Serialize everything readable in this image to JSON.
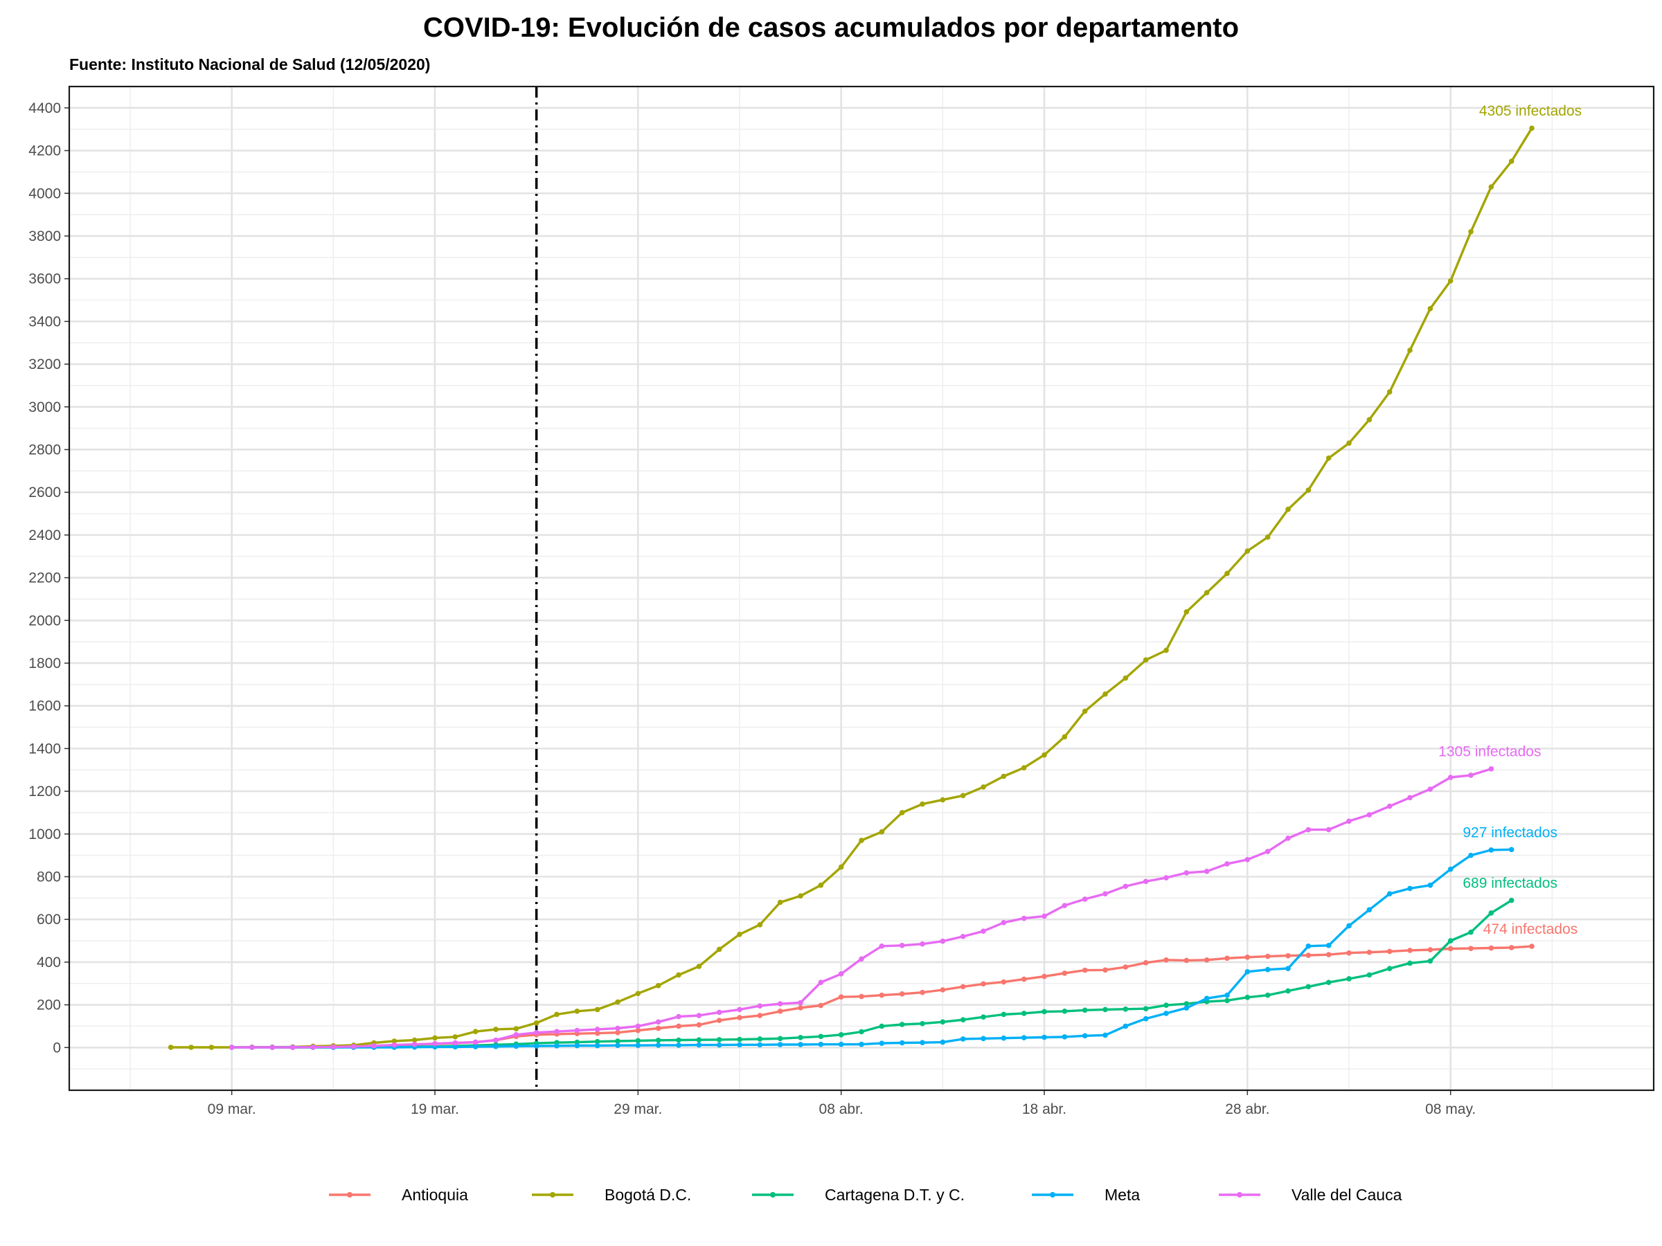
{
  "title": "COVID-19: Evolución de casos acumulados por departamento",
  "subtitle": "Fuente: Instituto Nacional de Salud (12/05/2020)",
  "chart_data": {
    "type": "line",
    "title": "COVID-19: Evolución de casos acumulados por departamento",
    "subtitle": "Fuente: Instituto Nacional de Salud (12/05/2020)",
    "xlabel": "",
    "ylabel": "",
    "x_axis": {
      "type": "date",
      "range": [
        "2020-03-01",
        "2020-05-18"
      ],
      "ticks": [
        {
          "date": "2020-03-09",
          "label": "09 mar."
        },
        {
          "date": "2020-03-19",
          "label": "19 mar."
        },
        {
          "date": "2020-03-29",
          "label": "29 mar."
        },
        {
          "date": "2020-04-08",
          "label": "08 abr."
        },
        {
          "date": "2020-04-18",
          "label": "18 abr."
        },
        {
          "date": "2020-04-28",
          "label": "28 abr."
        },
        {
          "date": "2020-05-08",
          "label": "08 may."
        }
      ]
    },
    "y_axis": {
      "range": [
        -200,
        4500
      ],
      "ticks": [
        0,
        200,
        400,
        600,
        800,
        1000,
        1200,
        1400,
        1600,
        1800,
        2000,
        2200,
        2400,
        2600,
        2800,
        3000,
        3200,
        3400,
        3600,
        3800,
        4000,
        4200,
        4400
      ]
    },
    "grid": true,
    "reference_line": {
      "date": "2020-03-24",
      "style": "dot-dash"
    },
    "legend_position": "bottom",
    "series": [
      {
        "name": "Antioquia",
        "color": "#F8766D",
        "label": "474 infectados",
        "start_date": "2020-03-11",
        "values": [
          1,
          1,
          2,
          3,
          5,
          8,
          11,
          14,
          17,
          20,
          25,
          34,
          52,
          60,
          63,
          65,
          67,
          70,
          80,
          90,
          100,
          106,
          127,
          140,
          150,
          170,
          186,
          197,
          237,
          239,
          245,
          251,
          258,
          270,
          285,
          298,
          307,
          320,
          333,
          348,
          362,
          363,
          377,
          397,
          410,
          408,
          410,
          418,
          423,
          427,
          430,
          432,
          435,
          443,
          446,
          450,
          455,
          458,
          463,
          464,
          466,
          468,
          474
        ]
      },
      {
        "name": "Bogotá D.C.",
        "color": "#A3A500",
        "label": "4305 infectados",
        "start_date": "2020-03-06",
        "values": [
          1,
          1,
          1,
          1,
          2,
          2,
          3,
          6,
          8,
          11,
          22,
          30,
          35,
          45,
          50,
          75,
          85,
          88,
          115,
          155,
          170,
          178,
          213,
          253,
          290,
          340,
          380,
          460,
          530,
          575,
          680,
          710,
          760,
          845,
          970,
          1010,
          1100,
          1140,
          1160,
          1180,
          1220,
          1270,
          1310,
          1370,
          1455,
          1575,
          1655,
          1730,
          1815,
          1860,
          2040,
          2130,
          2220,
          2325,
          2390,
          2520,
          2610,
          2760,
          2830,
          2940,
          3070,
          3265,
          3460,
          3590,
          3820,
          4030,
          4150,
          4305
        ]
      },
      {
        "name": "Cartagena D.T. y C.",
        "color": "#00BF7D",
        "label": "689 infectados",
        "start_date": "2020-03-11",
        "values": [
          1,
          1,
          1,
          1,
          2,
          2,
          3,
          4,
          5,
          7,
          10,
          13,
          16,
          20,
          23,
          25,
          28,
          30,
          32,
          34,
          35,
          36,
          37,
          38,
          40,
          42,
          47,
          52,
          60,
          74,
          100,
          108,
          112,
          120,
          130,
          143,
          155,
          160,
          168,
          170,
          175,
          178,
          180,
          182,
          198,
          205,
          215,
          220,
          235,
          245,
          265,
          285,
          305,
          322,
          340,
          370,
          395,
          405,
          500,
          540,
          630,
          689
        ]
      },
      {
        "name": "Meta",
        "color": "#00B0F6",
        "label": "927 infectados",
        "start_date": "2020-03-09",
        "values": [
          1,
          1,
          1,
          1,
          1,
          1,
          1,
          1,
          1,
          2,
          3,
          3,
          4,
          5,
          6,
          7,
          8,
          9,
          9,
          10,
          10,
          11,
          11,
          12,
          12,
          13,
          13,
          14,
          14,
          15,
          15,
          15,
          20,
          22,
          23,
          25,
          40,
          42,
          44,
          46,
          48,
          50,
          55,
          58,
          100,
          135,
          160,
          185,
          230,
          245,
          355,
          365,
          370,
          475,
          478,
          570,
          645,
          720,
          745,
          760,
          835,
          900,
          925,
          927
        ]
      },
      {
        "name": "Valle del Cauca",
        "color": "#E76BF3",
        "label": "1305 infectados",
        "start_date": "2020-03-09",
        "values": [
          1,
          1,
          1,
          1,
          2,
          3,
          5,
          8,
          12,
          15,
          18,
          22,
          25,
          35,
          60,
          70,
          75,
          80,
          85,
          90,
          100,
          120,
          145,
          150,
          165,
          178,
          195,
          205,
          210,
          305,
          345,
          415,
          475,
          478,
          485,
          498,
          520,
          545,
          585,
          605,
          615,
          665,
          695,
          720,
          755,
          778,
          795,
          818,
          825,
          860,
          880,
          918,
          980,
          1020,
          1020,
          1060,
          1090,
          1130,
          1170,
          1210,
          1265,
          1275,
          1305
        ]
      }
    ]
  }
}
